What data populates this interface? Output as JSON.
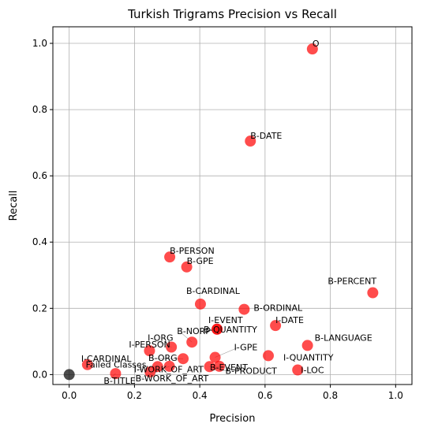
{
  "chart_data": {
    "type": "scatter",
    "title": "Turkish Trigrams Precision vs Recall",
    "xlabel": "Precision",
    "ylabel": "Recall",
    "xlim": [
      -0.05,
      1.05
    ],
    "ylim": [
      -0.03,
      1.05
    ],
    "xticks": [
      "0.0",
      "0.2",
      "0.4",
      "0.6",
      "0.8",
      "1.0"
    ],
    "yticks": [
      "0.0",
      "0.2",
      "0.4",
      "0.6",
      "0.8",
      "1.0"
    ],
    "grid": true,
    "colors": {
      "point": "#ff0000",
      "failed": "#000000"
    },
    "points": [
      {
        "label": "O",
        "x": 0.745,
        "y": 0.983
      },
      {
        "label": "B-DATE",
        "x": 0.555,
        "y": 0.705
      },
      {
        "label": "B-PERSON",
        "x": 0.308,
        "y": 0.355
      },
      {
        "label": "B-GPE",
        "x": 0.36,
        "y": 0.325
      },
      {
        "label": "B-PERCENT",
        "x": 0.93,
        "y": 0.247
      },
      {
        "label": "B-CARDINAL",
        "x": 0.402,
        "y": 0.213
      },
      {
        "label": "B-ORDINAL",
        "x": 0.536,
        "y": 0.197
      },
      {
        "label": "I-DATE",
        "x": 0.632,
        "y": 0.148
      },
      {
        "label": "I-EVENT",
        "x": 0.453,
        "y": 0.137
      },
      {
        "label": "B-QUANTITY",
        "x": 0.453,
        "y": 0.137
      },
      {
        "label": "I-ORG",
        "x": 0.313,
        "y": 0.083
      },
      {
        "label": "B-NORP",
        "x": 0.376,
        "y": 0.098
      },
      {
        "label": "B-LANGUAGE",
        "x": 0.73,
        "y": 0.088
      },
      {
        "label": "I-PERSON",
        "x": 0.246,
        "y": 0.072
      },
      {
        "label": "B-ORG",
        "x": 0.349,
        "y": 0.048
      },
      {
        "label": "I-GPE",
        "x": 0.447,
        "y": 0.052
      },
      {
        "label": "B-EVENT",
        "x": 0.46,
        "y": 0.025
      },
      {
        "label": "I-QUANTITY",
        "x": 0.61,
        "y": 0.057
      },
      {
        "label": "I-CARDINAL",
        "x": 0.056,
        "y": 0.03
      },
      {
        "label": "I-WORK_OF_ART",
        "x": 0.271,
        "y": 0.024
      },
      {
        "label": "B-WORK_OF_ART",
        "x": 0.307,
        "y": 0.025
      },
      {
        "label": "B-PRODUCT",
        "x": 0.43,
        "y": 0.024
      },
      {
        "label": "I-LOC",
        "x": 0.7,
        "y": 0.014
      },
      {
        "label": "B-TITLE",
        "x": 0.142,
        "y": 0.003
      },
      {
        "label": "",
        "x": 0.248,
        "y": 0.008
      }
    ],
    "failed": {
      "label": "Failed Classes",
      "x": 0.0,
      "y": 0.0
    }
  }
}
